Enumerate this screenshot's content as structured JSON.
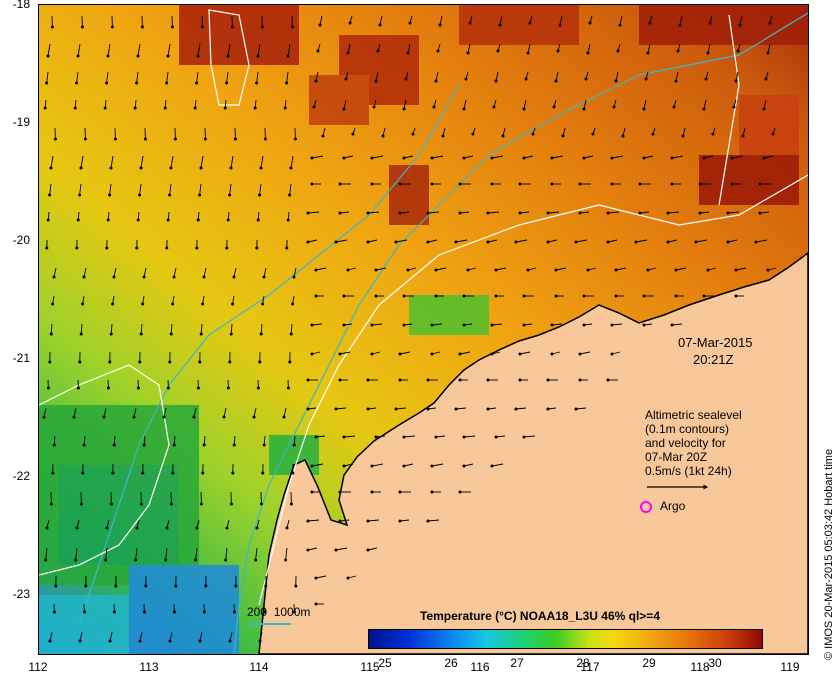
{
  "map": {
    "latitude_labels": [
      "-18",
      "-19",
      "-20",
      "-21",
      "-22",
      "-23"
    ],
    "longitude_labels": [
      "112",
      "113",
      "114",
      "115",
      "116",
      "117",
      "118",
      "119"
    ],
    "date": "07-Mar-2015",
    "time": "20:21Z",
    "legend": {
      "line1": "Altimetric sealevel",
      "line2": "(0.1m contours)",
      "line3": "and velocity for",
      "line4": "07-Mar 20Z",
      "line5": "0.5m/s (1kt 24h)"
    },
    "argo_label": "Argo",
    "depth_contour_label": "200  1000m",
    "land_color": "#f9c89a",
    "bathymetry_contour_color": "#3ab8c8",
    "sealevel_contour_color": "#ffffff",
    "argo_marker_color": "#ff00ff"
  },
  "colorbar": {
    "title": "Temperature (°C) NOAA18_L3U 46% ql>=4",
    "ticks": [
      "25",
      "26",
      "27",
      "28",
      "29",
      "30"
    ],
    "colors": [
      "#00128c",
      "#0a8ef0",
      "#1fd06a",
      "#c8e21a",
      "#f2a612",
      "#c8380a",
      "#8e0a06"
    ]
  },
  "credit": "© IMOS 20-Mar-2015 05:03:42 Hobart time"
}
